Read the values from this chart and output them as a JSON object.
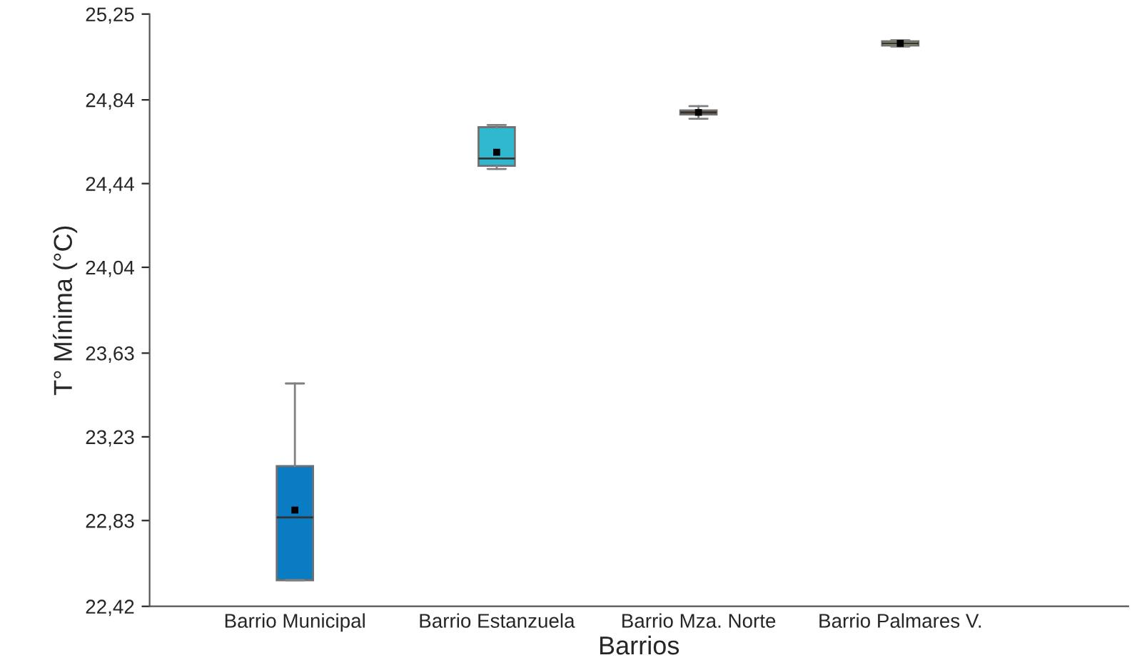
{
  "chart_data": {
    "type": "box",
    "xlabel": "Barrios",
    "ylabel": "T° Mínima (°C)",
    "categories": [
      "Barrio Municipal",
      "Barrio Estanzuela",
      "Barrio Mza. Norte",
      "Barrio Palmares V."
    ],
    "colors": [
      "#0a7cc4",
      "#30b8d0",
      "#b8652a",
      "#eeee80"
    ],
    "boxes": [
      {
        "low": 22.545,
        "q1": 22.545,
        "median": 22.845,
        "q3": 23.09,
        "high": 23.485,
        "mean": 22.88
      },
      {
        "low": 24.51,
        "q1": 24.525,
        "median": 24.56,
        "q3": 24.71,
        "high": 24.72,
        "mean": 24.59
      },
      {
        "low": 24.75,
        "q1": 24.77,
        "median": 24.78,
        "q3": 24.79,
        "high": 24.81,
        "mean": 24.78
      },
      {
        "low": 25.095,
        "q1": 25.1,
        "median": 25.11,
        "q3": 25.12,
        "high": 25.125,
        "mean": 25.11
      }
    ],
    "ylim": [
      22.42,
      25.25
    ],
    "yticks": [
      {
        "value": 22.42,
        "label": "22,42"
      },
      {
        "value": 22.83,
        "label": "22,83"
      },
      {
        "value": 23.23,
        "label": "23,23"
      },
      {
        "value": 23.63,
        "label": "23,63"
      },
      {
        "value": 24.04,
        "label": "24,04"
      },
      {
        "value": 24.44,
        "label": "24,44"
      },
      {
        "value": 24.84,
        "label": "24,84"
      },
      {
        "value": 25.25,
        "label": "25,25"
      }
    ],
    "marker": "square",
    "grid": false,
    "legend": false
  }
}
